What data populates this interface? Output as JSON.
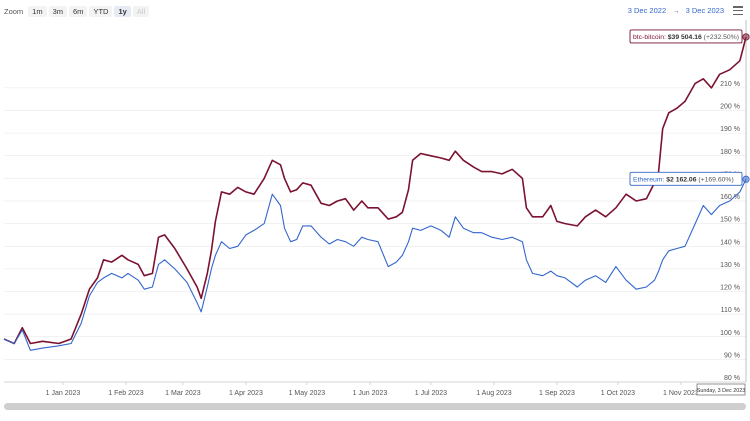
{
  "zoom": {
    "label": "Zoom",
    "buttons": [
      {
        "label": "1m",
        "state": "normal"
      },
      {
        "label": "3m",
        "state": "normal"
      },
      {
        "label": "6m",
        "state": "normal"
      },
      {
        "label": "YTD",
        "state": "normal"
      },
      {
        "label": "1y",
        "state": "active"
      },
      {
        "label": "All",
        "state": "disabled"
      }
    ]
  },
  "range": {
    "from": "3 Dec 2022",
    "arrow": "→",
    "to": "3 Dec 2023"
  },
  "menu": {
    "icon": "hamburger-menu-icon"
  },
  "colors": {
    "bitcoin": "#7a1230",
    "ethereum": "#3366cc",
    "grid": "#e6e6e6",
    "axis_text": "#555555"
  },
  "chart_data": {
    "type": "line",
    "x_range": [
      "2022-12-03",
      "2023-12-03"
    ],
    "y_range": [
      80,
      240
    ],
    "y_ticks": [
      80,
      90,
      100,
      110,
      120,
      130,
      140,
      150,
      160,
      170,
      180,
      190,
      200,
      210
    ],
    "y_tick_suffix": " %",
    "x_ticks": [
      "1 Jan 2023",
      "1 Feb 2023",
      "1 Mar 2023",
      "1 Apr 2023",
      "1 May 2023",
      "1 Jun 2023",
      "1 Jul 2023",
      "1 Aug 2023",
      "1 Sep 2023",
      "1 Oct 2023",
      "1 Nov 2023"
    ],
    "x_tick_dates": [
      "2023-01-01",
      "2023-02-01",
      "2023-03-01",
      "2023-04-01",
      "2023-05-01",
      "2023-06-01",
      "2023-07-01",
      "2023-08-01",
      "2023-09-01",
      "2023-10-01",
      "2023-11-01"
    ],
    "grid": true,
    "crosshair_label": "Sunday, 3 Dec 2023",
    "series": [
      {
        "name": "btc-bitcoin",
        "tooltip_value": "$39 504.16",
        "tooltip_change": "(+232.50%)",
        "end_value": 232.5,
        "points": [
          [
            "2022-12-03",
            99
          ],
          [
            "2022-12-08",
            97
          ],
          [
            "2022-12-12",
            104
          ],
          [
            "2022-12-16",
            97
          ],
          [
            "2022-12-22",
            98
          ],
          [
            "2022-12-30",
            97
          ],
          [
            "2023-01-05",
            99
          ],
          [
            "2023-01-10",
            110
          ],
          [
            "2023-01-14",
            121
          ],
          [
            "2023-01-18",
            126
          ],
          [
            "2023-01-21",
            134
          ],
          [
            "2023-01-25",
            133
          ],
          [
            "2023-01-30",
            136
          ],
          [
            "2023-02-02",
            134
          ],
          [
            "2023-02-07",
            132
          ],
          [
            "2023-02-10",
            127
          ],
          [
            "2023-02-14",
            128
          ],
          [
            "2023-02-17",
            144
          ],
          [
            "2023-02-20",
            145
          ],
          [
            "2023-02-25",
            139
          ],
          [
            "2023-03-03",
            130
          ],
          [
            "2023-03-08",
            122
          ],
          [
            "2023-03-10",
            117
          ],
          [
            "2023-03-13",
            128
          ],
          [
            "2023-03-15",
            138
          ],
          [
            "2023-03-17",
            151
          ],
          [
            "2023-03-20",
            164
          ],
          [
            "2023-03-24",
            163
          ],
          [
            "2023-03-28",
            166
          ],
          [
            "2023-04-01",
            164
          ],
          [
            "2023-04-05",
            163
          ],
          [
            "2023-04-10",
            170
          ],
          [
            "2023-04-14",
            178
          ],
          [
            "2023-04-18",
            176
          ],
          [
            "2023-04-20",
            170
          ],
          [
            "2023-04-23",
            164
          ],
          [
            "2023-04-26",
            165
          ],
          [
            "2023-04-29",
            168
          ],
          [
            "2023-05-03",
            167
          ],
          [
            "2023-05-08",
            159
          ],
          [
            "2023-05-12",
            158
          ],
          [
            "2023-05-16",
            160
          ],
          [
            "2023-05-20",
            161
          ],
          [
            "2023-05-24",
            156
          ],
          [
            "2023-05-28",
            160
          ],
          [
            "2023-05-31",
            157
          ],
          [
            "2023-06-05",
            157
          ],
          [
            "2023-06-10",
            152
          ],
          [
            "2023-06-14",
            153
          ],
          [
            "2023-06-17",
            155
          ],
          [
            "2023-06-20",
            165
          ],
          [
            "2023-06-22",
            178
          ],
          [
            "2023-06-26",
            181
          ],
          [
            "2023-07-01",
            180
          ],
          [
            "2023-07-06",
            179
          ],
          [
            "2023-07-10",
            178
          ],
          [
            "2023-07-13",
            182
          ],
          [
            "2023-07-17",
            178
          ],
          [
            "2023-07-22",
            175
          ],
          [
            "2023-07-26",
            173
          ],
          [
            "2023-07-31",
            173
          ],
          [
            "2023-08-05",
            172
          ],
          [
            "2023-08-10",
            174
          ],
          [
            "2023-08-15",
            170
          ],
          [
            "2023-08-17",
            157
          ],
          [
            "2023-08-20",
            153
          ],
          [
            "2023-08-25",
            153
          ],
          [
            "2023-08-29",
            158
          ],
          [
            "2023-09-01",
            151
          ],
          [
            "2023-09-05",
            150
          ],
          [
            "2023-09-11",
            149
          ],
          [
            "2023-09-15",
            153
          ],
          [
            "2023-09-20",
            156
          ],
          [
            "2023-09-25",
            153
          ],
          [
            "2023-09-30",
            157
          ],
          [
            "2023-10-05",
            163
          ],
          [
            "2023-10-10",
            160
          ],
          [
            "2023-10-15",
            161
          ],
          [
            "2023-10-19",
            168
          ],
          [
            "2023-10-21",
            173
          ],
          [
            "2023-10-23",
            192
          ],
          [
            "2023-10-26",
            199
          ],
          [
            "2023-10-30",
            201
          ],
          [
            "2023-11-03",
            204
          ],
          [
            "2023-11-08",
            212
          ],
          [
            "2023-11-12",
            214
          ],
          [
            "2023-11-16",
            210
          ],
          [
            "2023-11-20",
            216
          ],
          [
            "2023-11-25",
            218
          ],
          [
            "2023-11-30",
            222
          ],
          [
            "2023-12-03",
            232.5
          ]
        ]
      },
      {
        "name": "Ethereum",
        "tooltip_value": "$2 162.06",
        "tooltip_change": "(+169.60%)",
        "end_value": 169.6,
        "points": [
          [
            "2022-12-03",
            99
          ],
          [
            "2022-12-08",
            97
          ],
          [
            "2022-12-12",
            103
          ],
          [
            "2022-12-16",
            94
          ],
          [
            "2022-12-22",
            95
          ],
          [
            "2022-12-30",
            96
          ],
          [
            "2023-01-05",
            97
          ],
          [
            "2023-01-10",
            106
          ],
          [
            "2023-01-14",
            118
          ],
          [
            "2023-01-18",
            124
          ],
          [
            "2023-01-21",
            126
          ],
          [
            "2023-01-25",
            128
          ],
          [
            "2023-01-30",
            126
          ],
          [
            "2023-02-02",
            128
          ],
          [
            "2023-02-07",
            125
          ],
          [
            "2023-02-10",
            121
          ],
          [
            "2023-02-14",
            122
          ],
          [
            "2023-02-17",
            132
          ],
          [
            "2023-02-20",
            134
          ],
          [
            "2023-02-25",
            130
          ],
          [
            "2023-03-03",
            124
          ],
          [
            "2023-03-08",
            115
          ],
          [
            "2023-03-10",
            111
          ],
          [
            "2023-03-13",
            122
          ],
          [
            "2023-03-15",
            130
          ],
          [
            "2023-03-17",
            136
          ],
          [
            "2023-03-20",
            142
          ],
          [
            "2023-03-24",
            139
          ],
          [
            "2023-03-28",
            140
          ],
          [
            "2023-04-01",
            145
          ],
          [
            "2023-04-05",
            147
          ],
          [
            "2023-04-10",
            150
          ],
          [
            "2023-04-14",
            163
          ],
          [
            "2023-04-18",
            158
          ],
          [
            "2023-04-20",
            148
          ],
          [
            "2023-04-23",
            142
          ],
          [
            "2023-04-26",
            143
          ],
          [
            "2023-04-29",
            149
          ],
          [
            "2023-05-03",
            149
          ],
          [
            "2023-05-08",
            144
          ],
          [
            "2023-05-12",
            141
          ],
          [
            "2023-05-16",
            143
          ],
          [
            "2023-05-20",
            142
          ],
          [
            "2023-05-24",
            140
          ],
          [
            "2023-05-28",
            144
          ],
          [
            "2023-05-31",
            143
          ],
          [
            "2023-06-05",
            142
          ],
          [
            "2023-06-10",
            131
          ],
          [
            "2023-06-14",
            133
          ],
          [
            "2023-06-17",
            136
          ],
          [
            "2023-06-20",
            142
          ],
          [
            "2023-06-22",
            148
          ],
          [
            "2023-06-26",
            147
          ],
          [
            "2023-07-01",
            149
          ],
          [
            "2023-07-06",
            147
          ],
          [
            "2023-07-10",
            144
          ],
          [
            "2023-07-13",
            153
          ],
          [
            "2023-07-17",
            148
          ],
          [
            "2023-07-22",
            146
          ],
          [
            "2023-07-26",
            146
          ],
          [
            "2023-07-31",
            144
          ],
          [
            "2023-08-05",
            143
          ],
          [
            "2023-08-10",
            144
          ],
          [
            "2023-08-15",
            142
          ],
          [
            "2023-08-17",
            134
          ],
          [
            "2023-08-20",
            128
          ],
          [
            "2023-08-25",
            127
          ],
          [
            "2023-08-29",
            129
          ],
          [
            "2023-09-01",
            127
          ],
          [
            "2023-09-05",
            126
          ],
          [
            "2023-09-11",
            122
          ],
          [
            "2023-09-15",
            125
          ],
          [
            "2023-09-20",
            127
          ],
          [
            "2023-09-25",
            124
          ],
          [
            "2023-09-30",
            131
          ],
          [
            "2023-10-05",
            125
          ],
          [
            "2023-10-10",
            121
          ],
          [
            "2023-10-15",
            122
          ],
          [
            "2023-10-19",
            125
          ],
          [
            "2023-10-21",
            129
          ],
          [
            "2023-10-23",
            134
          ],
          [
            "2023-10-26",
            138
          ],
          [
            "2023-10-30",
            139
          ],
          [
            "2023-11-03",
            140
          ],
          [
            "2023-11-08",
            150
          ],
          [
            "2023-11-12",
            158
          ],
          [
            "2023-11-16",
            154
          ],
          [
            "2023-11-20",
            158
          ],
          [
            "2023-11-25",
            160
          ],
          [
            "2023-11-30",
            164
          ],
          [
            "2023-12-03",
            169.6
          ]
        ]
      }
    ]
  }
}
